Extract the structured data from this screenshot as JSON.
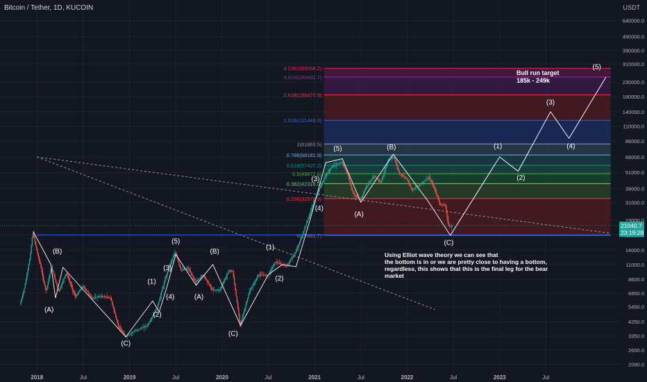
{
  "header": {
    "symbol_title": "Bitcoin / Tether, 1D, KUCOIN",
    "currency": "USDT"
  },
  "price_badge": {
    "price": "21040.7",
    "countdown": "23:19:28",
    "color": "#26a69a"
  },
  "annotations": {
    "bull_target_line1": "Bull run target",
    "bull_target_line2": "185k - 249k",
    "analysis_line1": "Using Elliot wave theory we can see that",
    "analysis_line2": "the bottom is in or we are pretty close to having a bottom,",
    "analysis_line3": "regardless, this shows that this is the final leg for the bear market"
  },
  "chart_data": {
    "type": "candlestick",
    "title": "Bitcoin / Tether, 1D, KUCOIN",
    "y_scale": "log",
    "y_unit": "USDT",
    "y_ticks": [
      2090,
      2650,
      3350,
      4250,
      5450,
      6850,
      8600,
      11000,
      14000,
      18000,
      23000,
      31000,
      39000,
      51000,
      66000,
      86000,
      110000,
      140000,
      180000,
      230000,
      310000,
      390000,
      490000,
      640000
    ],
    "y_tick_labels": [
      "2090.0",
      "2650.0",
      "3350.0",
      "4250.0",
      "5450.0",
      "6850.0",
      "8600.0",
      "11000.0",
      "14000.0",
      "18000.0",
      "23000.0",
      "31000.0",
      "39000.0",
      "51000.0",
      "66000.0",
      "86000.0",
      "110000.0",
      "140000.0",
      "180000.0",
      "230000.0",
      "310000.0",
      "390000.0",
      "490000.0",
      "640000.0"
    ],
    "x_ticks": [
      2018.0,
      2018.5,
      2019.0,
      2019.5,
      2020.0,
      2020.5,
      2021.0,
      2021.5,
      2022.0,
      2022.5,
      2023.0,
      2023.5
    ],
    "x_tick_labels": [
      "2018",
      "Jul",
      "2019",
      "Jul",
      "2020",
      "Jul",
      "2021",
      "Jul",
      "2022",
      "Jul",
      "2023",
      "Jul"
    ],
    "x_range": [
      2017.6,
      2024.3
    ],
    "y_range": [
      1850,
      900000
    ],
    "price_path": [
      [
        2017.82,
        5600
      ],
      [
        2017.87,
        7500
      ],
      [
        2017.93,
        12500
      ],
      [
        2017.96,
        19000
      ],
      [
        2018.0,
        14000
      ],
      [
        2018.04,
        11000
      ],
      [
        2018.1,
        7000
      ],
      [
        2018.16,
        10500
      ],
      [
        2018.24,
        7000
      ],
      [
        2018.32,
        9600
      ],
      [
        2018.42,
        6400
      ],
      [
        2018.5,
        7700
      ],
      [
        2018.6,
        6300
      ],
      [
        2018.7,
        6500
      ],
      [
        2018.8,
        6300
      ],
      [
        2018.88,
        4000
      ],
      [
        2018.96,
        3300
      ],
      [
        2019.05,
        3600
      ],
      [
        2019.2,
        4000
      ],
      [
        2019.3,
        5300
      ],
      [
        2019.38,
        8200
      ],
      [
        2019.44,
        11000
      ],
      [
        2019.5,
        13500
      ],
      [
        2019.56,
        10000
      ],
      [
        2019.64,
        10300
      ],
      [
        2019.72,
        8200
      ],
      [
        2019.8,
        9300
      ],
      [
        2019.9,
        7200
      ],
      [
        2019.98,
        7200
      ],
      [
        2020.08,
        10000
      ],
      [
        2020.12,
        9800
      ],
      [
        2020.2,
        4000
      ],
      [
        2020.3,
        7000
      ],
      [
        2020.4,
        9300
      ],
      [
        2020.5,
        9200
      ],
      [
        2020.58,
        11500
      ],
      [
        2020.7,
        10700
      ],
      [
        2020.8,
        13500
      ],
      [
        2020.88,
        18500
      ],
      [
        2020.98,
        29000
      ],
      [
        2021.05,
        38000
      ],
      [
        2021.12,
        48000
      ],
      [
        2021.2,
        57000
      ],
      [
        2021.3,
        60000
      ],
      [
        2021.36,
        50000
      ],
      [
        2021.42,
        36000
      ],
      [
        2021.5,
        32000
      ],
      [
        2021.56,
        40000
      ],
      [
        2021.65,
        48000
      ],
      [
        2021.72,
        43000
      ],
      [
        2021.8,
        63000
      ],
      [
        2021.86,
        66000
      ],
      [
        2021.92,
        50000
      ],
      [
        2022.0,
        46000
      ],
      [
        2022.06,
        38000
      ],
      [
        2022.15,
        42000
      ],
      [
        2022.24,
        47000
      ],
      [
        2022.3,
        39000
      ],
      [
        2022.36,
        30000
      ],
      [
        2022.42,
        29500
      ],
      [
        2022.45,
        21000
      ],
      [
        2022.47,
        20500
      ],
      [
        2022.49,
        21040
      ]
    ],
    "projection_path": [
      [
        2022.47,
        18000
      ],
      [
        2023.0,
        66000
      ],
      [
        2023.2,
        52000
      ],
      [
        2023.55,
        140000
      ],
      [
        2023.75,
        90000
      ],
      [
        2024.15,
        250000
      ]
    ],
    "elliott_wave_lines": [
      [
        [
          2017.96,
          19000
        ],
        [
          2018.15,
          11000
        ],
        [
          2018.2,
          6300
        ],
        [
          2018.28,
          10500
        ],
        [
          2018.96,
          3300
        ],
        [
          2019.25,
          6000
        ],
        [
          2019.32,
          5000
        ],
        [
          2019.4,
          7400
        ],
        [
          2019.5,
          13000
        ],
        [
          2019.72,
          7800
        ],
        [
          2019.9,
          11000
        ],
        [
          2020.2,
          4000
        ],
        [
          2020.5,
          9300
        ],
        [
          2020.65,
          11000
        ],
        [
          2020.8,
          10600
        ],
        [
          2020.95,
          23000
        ],
        [
          2021.12,
          60000
        ],
        [
          2021.3,
          64000
        ],
        [
          2021.5,
          31000
        ],
        [
          2021.85,
          69000
        ],
        [
          2022.22,
          32000
        ],
        [
          2022.47,
          17800
        ]
      ]
    ],
    "trend_lines": [
      {
        "from": [
          2018.0,
          18000
        ],
        "to": [
          2024.2,
          18000
        ],
        "style": "solid",
        "color": "#2962ff"
      },
      {
        "from": [
          2018.0,
          66000
        ],
        "to": [
          2024.2,
          18500
        ],
        "style": "dashed",
        "color": "#9598a1"
      },
      {
        "from": [
          2018.0,
          66000
        ],
        "to": [
          2022.3,
          5200
        ],
        "style": "dashed",
        "color": "#9598a1"
      }
    ],
    "wave_labels": [
      {
        "text": "(B)",
        "x": 2018.22,
        "y": 13200
      },
      {
        "text": "(A)",
        "x": 2018.13,
        "y": 5000
      },
      {
        "text": "(C)",
        "x": 2018.96,
        "y": 2850
      },
      {
        "text": "(1)",
        "x": 2019.24,
        "y": 8000
      },
      {
        "text": "(2)",
        "x": 2019.3,
        "y": 4600
      },
      {
        "text": "(3)",
        "x": 2019.41,
        "y": 10000
      },
      {
        "text": "(4)",
        "x": 2019.44,
        "y": 6200
      },
      {
        "text": "(5)",
        "x": 2019.5,
        "y": 15600
      },
      {
        "text": "(A)",
        "x": 2019.75,
        "y": 6200
      },
      {
        "text": "(B)",
        "x": 2019.92,
        "y": 13200
      },
      {
        "text": "(C)",
        "x": 2020.12,
        "y": 3350
      },
      {
        "text": "(1)",
        "x": 2020.52,
        "y": 14200
      },
      {
        "text": "(2)",
        "x": 2020.62,
        "y": 8400
      },
      {
        "text": "(3)",
        "x": 2021.01,
        "y": 44000
      },
      {
        "text": "(4)",
        "x": 2021.05,
        "y": 27000
      },
      {
        "text": "(5)",
        "x": 2021.25,
        "y": 73000
      },
      {
        "text": "(A)",
        "x": 2021.48,
        "y": 24500
      },
      {
        "text": "(B)",
        "x": 2021.83,
        "y": 75000
      },
      {
        "text": "(C)",
        "x": 2022.45,
        "y": 15300
      },
      {
        "text": "(1)",
        "x": 2022.98,
        "y": 76000
      },
      {
        "text": "(2)",
        "x": 2023.23,
        "y": 45000
      },
      {
        "text": "(3)",
        "x": 2023.55,
        "y": 158000
      },
      {
        "text": "(4)",
        "x": 2023.77,
        "y": 76000
      },
      {
        "text": "(5)",
        "x": 2024.05,
        "y": 285000
      }
    ],
    "fib_levels": [
      {
        "ratio": "4.236",
        "label": "4.236(289058.2)",
        "value": 289058.2,
        "color": "#e91e63"
      },
      {
        "ratio": "3.618",
        "label": "3.618(249492.7)",
        "value": 249492.7,
        "color": "#9c27b0"
      },
      {
        "ratio": "2.618",
        "label": "2.618(185470.9)",
        "value": 185470.9,
        "color": "#f23645"
      },
      {
        "ratio": "1.618",
        "label": "1.618(121449.0)",
        "value": 121449.0,
        "color": "#2962ff"
      },
      {
        "ratio": "1",
        "label": "1(81883.5)",
        "value": 81883.5,
        "color": "#9598a1"
      },
      {
        "ratio": "0.786",
        "label": "0.786(68182.9)",
        "value": 68182.9,
        "color": "#64b5f6"
      },
      {
        "ratio": "0.618",
        "label": "0.618(57427.2)",
        "value": 57427.2,
        "color": "#089981"
      },
      {
        "ratio": "0.5",
        "label": "0.5(49872.6)",
        "value": 49872.6,
        "color": "#4caf50"
      },
      {
        "ratio": "0.382",
        "label": "0.382(42318.0)",
        "value": 42318.0,
        "color": "#81c784"
      },
      {
        "ratio": "0.236",
        "label": "0.236(32970.9)",
        "value": 32970.9,
        "color": "#f23645"
      },
      {
        "ratio": "0",
        "label": "0(17861.7)",
        "value": 17861.7,
        "color": "#787b86"
      }
    ],
    "fib_range_x": [
      2021.1,
      2024.2
    ],
    "fib_zone_colors": [
      "#4a1a3c",
      "#3a1a48",
      "#4a1a20",
      "#1a2a5c",
      "#2a3a4a",
      "#1a3a44",
      "#1a4440",
      "#1a4430",
      "#2a4028",
      "#4a1a20"
    ],
    "last_price": 21040.7
  }
}
